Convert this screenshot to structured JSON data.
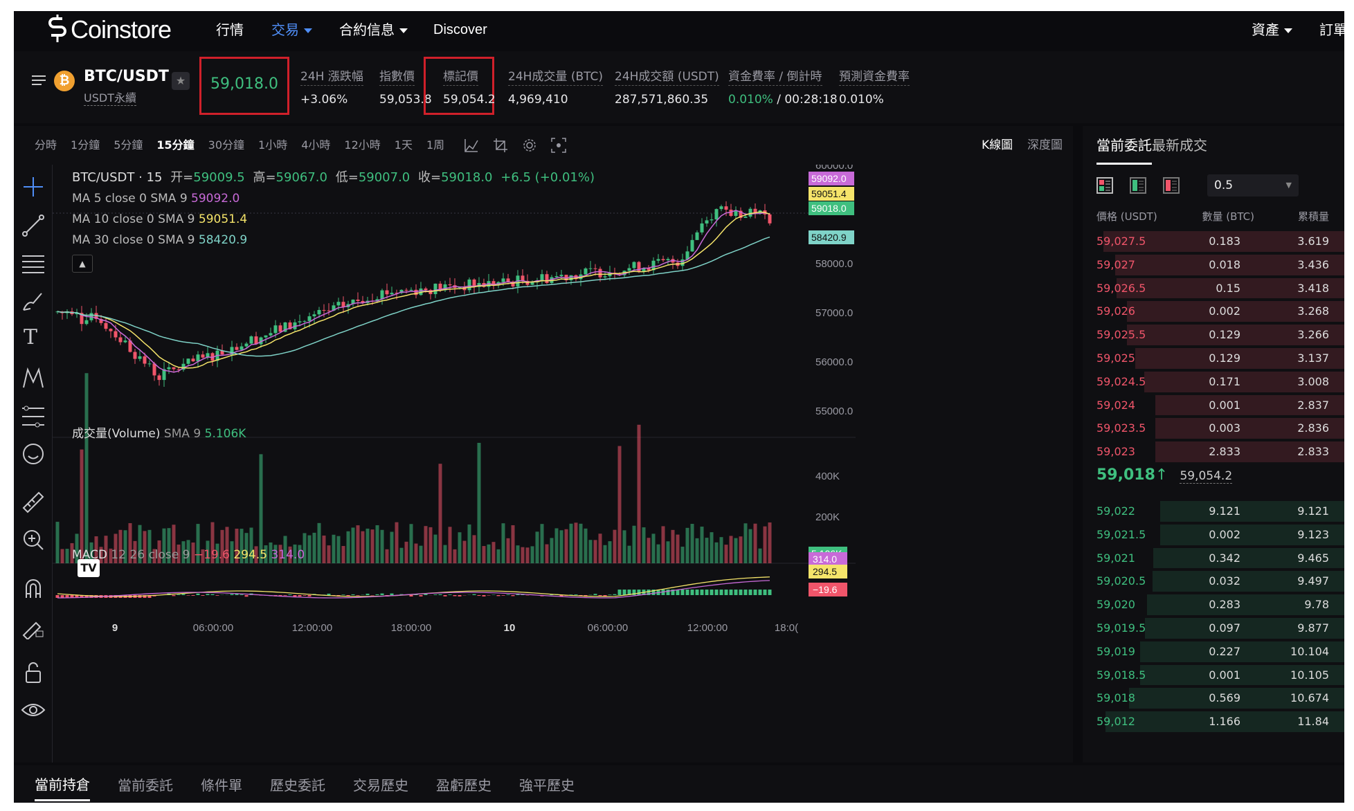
{
  "brand": {
    "name": "Coinstore"
  },
  "nav": {
    "items": [
      "行情",
      "交易",
      "合約信息",
      "Discover"
    ],
    "right": [
      "資產",
      "訂單"
    ]
  },
  "symbol": {
    "pair": "BTC/USDT",
    "sub": "USDT永續",
    "last_price": "59,018.0"
  },
  "stats": [
    {
      "label": "24H 漲跌幅",
      "value": "+3.06%"
    },
    {
      "label": "指數價",
      "value": "59,053.8"
    },
    {
      "label": "標記價",
      "value": "59,054.2"
    },
    {
      "label": "24H成交量 (BTC)",
      "value": "4,969,410"
    },
    {
      "label": "24H成交額 (USDT)",
      "value": "287,571,860.35"
    },
    {
      "label": "資金費率 / 倒計時",
      "value": "0.010%",
      "value2": " / 00:28:18"
    },
    {
      "label": "預測資金費率",
      "value": "0.010%"
    }
  ],
  "timeframes": [
    "分時",
    "1分鐘",
    "5分鐘",
    "15分鐘",
    "30分鐘",
    "1小時",
    "4小時",
    "12小時",
    "1天",
    "1周"
  ],
  "active_timeframe": "15分鐘",
  "chart_modes": [
    "K線圖",
    "深度圖"
  ],
  "chart": {
    "legend_title": "BTC/USDT · 15",
    "ohlc": {
      "o_lbl": "开=",
      "o": "59009.5",
      "h_lbl": "高=",
      "h": "59067.0",
      "l_lbl": "低=",
      "l": "59007.0",
      "c_lbl": "收=",
      "c": "59018.0",
      "chg": "+6.5 (+0.01%)"
    },
    "ma": [
      {
        "label": "MA 5 close 0 SMA 9",
        "value": "59092.0",
        "color": "#c86ad8"
      },
      {
        "label": "MA 10 close 0 SMA 9",
        "value": "59051.4",
        "color": "#f5e46a"
      },
      {
        "label": "MA 30 close 0 SMA 9",
        "value": "58420.9",
        "color": "#7fd3c8"
      }
    ],
    "price_axis": [
      "60000.0",
      "58000.0",
      "57000.0",
      "56000.0",
      "55000.0"
    ],
    "price_tags": [
      "59092.0",
      "59051.4",
      "59018.0",
      "58420.9"
    ],
    "volume_label": "成交量(Volume)",
    "volume_sma": "SMA 9",
    "volume_value": "5.106K",
    "volume_axis": [
      "400K",
      "200K"
    ],
    "macd_label": "MACD",
    "macd_params": "12 26 close 9",
    "macd_values": [
      "−19.6",
      "294.5",
      "314.0"
    ],
    "macd_tags": [
      "314.0",
      "294.5",
      "−19.6"
    ],
    "time_axis": [
      "9",
      "06:00:00",
      "12:00:00",
      "18:00:00",
      "10",
      "06:00:00",
      "12:00:00",
      "18:0("
    ]
  },
  "orderbook": {
    "tabs": [
      "當前委託",
      "最新成交"
    ],
    "precision": "0.5",
    "headers": [
      "價格 (USDT)",
      "數量 (BTC)",
      "累積量"
    ],
    "asks": [
      [
        "59,027.5",
        "0.183",
        "3.619"
      ],
      [
        "59,027",
        "0.018",
        "3.436"
      ],
      [
        "59,026.5",
        "0.15",
        "3.418"
      ],
      [
        "59,026",
        "0.002",
        "3.268"
      ],
      [
        "59,025.5",
        "0.129",
        "3.266"
      ],
      [
        "59,025",
        "0.129",
        "3.137"
      ],
      [
        "59,024.5",
        "0.171",
        "3.008"
      ],
      [
        "59,024",
        "0.001",
        "2.837"
      ],
      [
        "59,023.5",
        "0.003",
        "2.836"
      ],
      [
        "59,023",
        "2.833",
        "2.833"
      ]
    ],
    "mid_price": "59,018",
    "mid_arrow": "↑",
    "mark_price": "59,054.2",
    "bids": [
      [
        "59,022",
        "9.121",
        "9.121"
      ],
      [
        "59,021.5",
        "0.002",
        "9.123"
      ],
      [
        "59,021",
        "0.342",
        "9.465"
      ],
      [
        "59,020.5",
        "0.032",
        "9.497"
      ],
      [
        "59,020",
        "0.283",
        "9.78"
      ],
      [
        "59,019.5",
        "0.097",
        "9.877"
      ],
      [
        "59,019",
        "0.227",
        "10.104"
      ],
      [
        "59,018.5",
        "0.001",
        "10.105"
      ],
      [
        "59,018",
        "0.569",
        "10.674"
      ],
      [
        "59,012",
        "1.166",
        "11.84"
      ]
    ]
  },
  "bottom_tabs": [
    "當前持倉",
    "當前委託",
    "條件單",
    "歷史委託",
    "交易歷史",
    "盈虧歷史",
    "強平歷史"
  ],
  "colors": {
    "up": "#3fbf7f",
    "down": "#f0556a",
    "bg": "#0b0b0e"
  }
}
